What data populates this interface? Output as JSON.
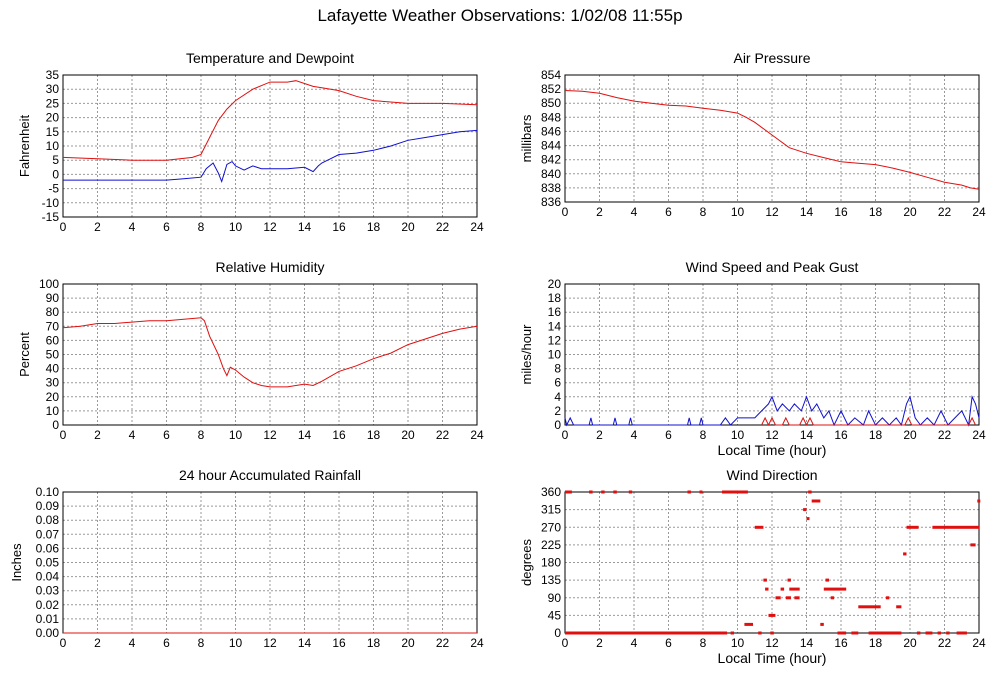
{
  "page": {
    "title": "Lafayette Weather Observations: 1/02/08 11:55p"
  },
  "colors": {
    "red": "#e01010",
    "blue": "#1010d0",
    "grid": "#999999",
    "frame": "#000000"
  },
  "chart_data": [
    {
      "id": "temp",
      "type": "line",
      "title": "Temperature and Dewpoint",
      "ylabel": "Fahrenheit",
      "xlabel": "",
      "xlim": [
        0,
        24
      ],
      "ylim": [
        -15,
        35
      ],
      "x_ticks": [
        0,
        2,
        4,
        6,
        8,
        10,
        12,
        14,
        16,
        18,
        20,
        22,
        24
      ],
      "y_ticks": [
        -15,
        -10,
        -5,
        0,
        5,
        10,
        15,
        20,
        25,
        30,
        35
      ],
      "grid": true,
      "series": [
        {
          "color": "red",
          "x": [
            0,
            2,
            4,
            5,
            6,
            7.5,
            8,
            8.5,
            9,
            9.5,
            10,
            11,
            12,
            13,
            13.5,
            14,
            14.5,
            15,
            16,
            17,
            18,
            20,
            22,
            24
          ],
          "y": [
            6,
            5.5,
            5,
            5,
            5,
            6,
            7,
            13,
            19,
            23,
            26,
            30,
            32.5,
            32.5,
            33,
            32,
            31,
            30.5,
            29.5,
            27.5,
            26,
            25,
            25,
            24.5
          ]
        },
        {
          "color": "blue",
          "x": [
            0,
            2,
            4,
            6,
            7,
            8,
            8.3,
            8.7,
            9,
            9.2,
            9.5,
            9.8,
            10,
            10.5,
            11,
            11.5,
            12,
            13,
            14,
            14.5,
            14.8,
            15,
            15.5,
            16,
            17,
            18,
            19,
            20,
            21,
            22,
            23,
            24
          ],
          "y": [
            -2,
            -2,
            -2,
            -2,
            -1.5,
            -1,
            2,
            4,
            0.5,
            -2.5,
            3.5,
            4.5,
            3,
            1.5,
            3,
            2,
            2,
            2,
            2.5,
            1,
            3,
            4,
            5.5,
            7,
            7.5,
            8.5,
            10,
            12,
            13,
            14,
            15,
            15.5
          ]
        }
      ]
    },
    {
      "id": "pressure",
      "type": "line",
      "title": "Air Pressure",
      "ylabel": "millibars",
      "xlabel": "",
      "xlim": [
        0,
        24
      ],
      "ylim": [
        836,
        854
      ],
      "x_ticks": [
        0,
        2,
        4,
        6,
        8,
        10,
        12,
        14,
        16,
        18,
        20,
        22,
        24
      ],
      "y_ticks": [
        836,
        838,
        840,
        842,
        844,
        846,
        848,
        850,
        852,
        854
      ],
      "grid": true,
      "series": [
        {
          "color": "red",
          "x": [
            0,
            1,
            2,
            3,
            4,
            5,
            6,
            7,
            8,
            9,
            10,
            10.5,
            11,
            12,
            13,
            14,
            15,
            16,
            17,
            18,
            19,
            20,
            21,
            22,
            23,
            23.5,
            24
          ],
          "y": [
            851.8,
            851.7,
            851.4,
            850.8,
            850.3,
            850.0,
            849.7,
            849.6,
            849.3,
            849.0,
            848.6,
            848.0,
            847.3,
            845.5,
            843.7,
            842.9,
            842.3,
            841.7,
            841.5,
            841.3,
            840.8,
            840.2,
            839.5,
            838.8,
            838.4,
            838.0,
            837.8
          ]
        }
      ]
    },
    {
      "id": "humidity",
      "type": "line",
      "title": "Relative Humidity",
      "ylabel": "Percent",
      "xlabel": "",
      "xlim": [
        0,
        24
      ],
      "ylim": [
        0,
        100
      ],
      "x_ticks": [
        0,
        2,
        4,
        6,
        8,
        10,
        12,
        14,
        16,
        18,
        20,
        22,
        24
      ],
      "y_ticks": [
        0,
        10,
        20,
        30,
        40,
        50,
        60,
        70,
        80,
        90,
        100
      ],
      "grid": true,
      "series": [
        {
          "color": "red",
          "x": [
            0,
            1,
            2,
            3,
            4,
            5,
            6,
            7,
            8,
            8.2,
            8.5,
            9,
            9.3,
            9.5,
            9.7,
            10,
            10.5,
            11,
            11.5,
            12,
            13,
            14,
            14.5,
            15,
            16,
            17,
            18,
            19,
            20,
            21,
            22,
            23,
            24
          ],
          "y": [
            69,
            70,
            72,
            72,
            73,
            74,
            74,
            75,
            76,
            74,
            63,
            50,
            40,
            35,
            41,
            39,
            34,
            30,
            28,
            27,
            27,
            29,
            28,
            31,
            38,
            42,
            47,
            51,
            57,
            61,
            65,
            68,
            70
          ]
        }
      ]
    },
    {
      "id": "wind",
      "type": "line",
      "title": "Wind Speed and Peak Gust",
      "ylabel": "miles/hour",
      "xlabel": "Local Time (hour)",
      "xlim": [
        0,
        24
      ],
      "ylim": [
        0,
        20
      ],
      "x_ticks": [
        0,
        2,
        4,
        6,
        8,
        10,
        12,
        14,
        16,
        18,
        20,
        22,
        24
      ],
      "y_ticks": [
        0,
        2,
        4,
        6,
        8,
        10,
        12,
        14,
        16,
        18,
        20
      ],
      "grid": true,
      "series": [
        {
          "color": "blue",
          "x": [
            0,
            0.1,
            0.3,
            0.5,
            1.4,
            1.5,
            1.6,
            2.8,
            2.9,
            3.0,
            3.7,
            3.8,
            3.9,
            7.1,
            7.2,
            7.3,
            7.8,
            7.9,
            8.0,
            9.0,
            9.3,
            9.6,
            10.0,
            10.5,
            11.0,
            11.4,
            11.8,
            12.0,
            12.3,
            12.6,
            13.0,
            13.3,
            13.7,
            14.0,
            14.3,
            14.6,
            15.0,
            15.3,
            15.6,
            16.0,
            16.4,
            16.8,
            17.3,
            17.6,
            18.0,
            18.4,
            18.8,
            19.2,
            19.5,
            19.8,
            20.0,
            20.3,
            20.6,
            21.0,
            21.4,
            21.8,
            22.2,
            22.6,
            23.0,
            23.4,
            23.6,
            23.8,
            24.0
          ],
          "y": [
            1,
            0,
            1,
            0,
            0,
            1,
            0,
            0,
            1,
            0,
            0,
            1,
            0,
            0,
            1,
            0,
            0,
            1,
            0,
            0,
            1,
            0,
            1,
            1,
            1,
            2,
            3,
            4,
            2,
            3,
            2,
            3,
            2,
            4,
            2,
            3,
            1,
            2,
            0,
            2,
            0,
            1,
            0,
            2,
            0,
            1,
            0,
            1,
            0,
            3,
            4,
            1,
            0,
            1,
            0,
            2,
            0,
            1,
            2,
            0,
            4,
            3,
            1
          ]
        },
        {
          "color": "red",
          "x": [
            11.4,
            11.6,
            11.8,
            12.0,
            12.2,
            12.6,
            12.8,
            13.0,
            13.6,
            13.8,
            14.0,
            14.2,
            14.4,
            19.7,
            19.9,
            20.1,
            23.4,
            23.6,
            23.8
          ],
          "y": [
            0,
            1,
            0,
            1,
            0,
            0,
            1,
            0,
            0,
            1,
            0,
            1,
            0,
            0,
            1,
            0,
            0,
            1,
            0
          ]
        }
      ]
    },
    {
      "id": "rain",
      "type": "line",
      "title": "24 hour Accumulated Rainfall",
      "ylabel": "Inches",
      "xlabel": "",
      "xlim": [
        0,
        24
      ],
      "ylim": [
        0,
        0.1
      ],
      "x_ticks": [
        0,
        2,
        4,
        6,
        8,
        10,
        12,
        14,
        16,
        18,
        20,
        22,
        24
      ],
      "y_ticks": [
        0,
        0.01,
        0.02,
        0.03,
        0.04,
        0.05,
        0.06,
        0.07,
        0.08,
        0.09,
        0.1
      ],
      "y_tick_labels": [
        "0.00",
        "0.01",
        "0.02",
        "0.03",
        "0.04",
        "0.05",
        "0.06",
        "0.07",
        "0.08",
        "0.09",
        "0.10"
      ],
      "grid": true,
      "series": [
        {
          "color": "red",
          "x": [
            0,
            24
          ],
          "y": [
            0,
            0
          ]
        }
      ]
    },
    {
      "id": "direction",
      "type": "scatter",
      "title": "Wind Direction",
      "ylabel": "degrees",
      "xlabel": "Local Time (hour)",
      "xlim": [
        0,
        24
      ],
      "ylim": [
        0,
        360
      ],
      "x_ticks": [
        0,
        2,
        4,
        6,
        8,
        10,
        12,
        14,
        16,
        18,
        20,
        22,
        24
      ],
      "y_ticks": [
        0,
        45,
        90,
        135,
        180,
        225,
        270,
        315,
        360
      ],
      "grid": true,
      "series": [
        {
          "color": "red",
          "ranges": [
            {
              "x0": 0,
              "x1": 9.4,
              "y": 0
            },
            {
              "x0": 0,
              "x1": 0.4,
              "y": 360
            },
            {
              "x0": 1.4,
              "x1": 1.6,
              "y": 360
            },
            {
              "x0": 2.1,
              "x1": 2.3,
              "y": 360
            },
            {
              "x0": 2.8,
              "x1": 3.0,
              "y": 360
            },
            {
              "x0": 3.7,
              "x1": 3.9,
              "y": 360
            },
            {
              "x0": 7.1,
              "x1": 7.3,
              "y": 360
            },
            {
              "x0": 7.8,
              "x1": 7.9,
              "y": 360
            },
            {
              "x0": 9.1,
              "x1": 10.6,
              "y": 360
            },
            {
              "x0": 9.6,
              "x1": 9.8,
              "y": 0
            },
            {
              "x0": 10.4,
              "x1": 10.9,
              "y": 22
            },
            {
              "x0": 11.0,
              "x1": 11.5,
              "y": 270
            },
            {
              "x0": 11.5,
              "x1": 11.7,
              "y": 135
            },
            {
              "x0": 11.2,
              "x1": 11.4,
              "y": 0
            },
            {
              "x0": 11.6,
              "x1": 11.8,
              "y": 112
            },
            {
              "x0": 11.8,
              "x1": 12.2,
              "y": 45
            },
            {
              "x0": 11.9,
              "x1": 12.1,
              "y": 0
            },
            {
              "x0": 12.2,
              "x1": 12.5,
              "y": 90
            },
            {
              "x0": 12.5,
              "x1": 12.7,
              "y": 112
            },
            {
              "x0": 12.8,
              "x1": 13.1,
              "y": 90
            },
            {
              "x0": 12.9,
              "x1": 13.1,
              "y": 135
            },
            {
              "x0": 13.0,
              "x1": 13.6,
              "y": 112
            },
            {
              "x0": 13.3,
              "x1": 13.6,
              "y": 90
            },
            {
              "x0": 13.8,
              "x1": 14.0,
              "y": 315
            },
            {
              "x0": 14.0,
              "x1": 14.1,
              "y": 292
            },
            {
              "x0": 14.1,
              "x1": 14.3,
              "y": 360
            },
            {
              "x0": 14.3,
              "x1": 14.8,
              "y": 337
            },
            {
              "x0": 14.8,
              "x1": 15.0,
              "y": 22
            },
            {
              "x0": 15.0,
              "x1": 16.3,
              "y": 112
            },
            {
              "x0": 15.1,
              "x1": 15.3,
              "y": 135
            },
            {
              "x0": 15.4,
              "x1": 15.6,
              "y": 90
            },
            {
              "x0": 15.8,
              "x1": 16.3,
              "y": 0
            },
            {
              "x0": 16.6,
              "x1": 17.0,
              "y": 0
            },
            {
              "x0": 17.0,
              "x1": 18.3,
              "y": 67
            },
            {
              "x0": 17.6,
              "x1": 19.5,
              "y": 0
            },
            {
              "x0": 18.6,
              "x1": 18.8,
              "y": 90
            },
            {
              "x0": 19.2,
              "x1": 19.5,
              "y": 67
            },
            {
              "x0": 19.6,
              "x1": 19.8,
              "y": 202
            },
            {
              "x0": 19.8,
              "x1": 20.5,
              "y": 270
            },
            {
              "x0": 20.4,
              "x1": 20.6,
              "y": 0
            },
            {
              "x0": 20.9,
              "x1": 21.3,
              "y": 0
            },
            {
              "x0": 21.3,
              "x1": 24.0,
              "y": 270
            },
            {
              "x0": 21.6,
              "x1": 21.8,
              "y": 0
            },
            {
              "x0": 22.1,
              "x1": 22.3,
              "y": 0
            },
            {
              "x0": 22.7,
              "x1": 23.3,
              "y": 0
            },
            {
              "x0": 23.5,
              "x1": 23.8,
              "y": 225
            },
            {
              "x0": 23.9,
              "x1": 24.0,
              "y": 337
            }
          ]
        }
      ]
    }
  ]
}
